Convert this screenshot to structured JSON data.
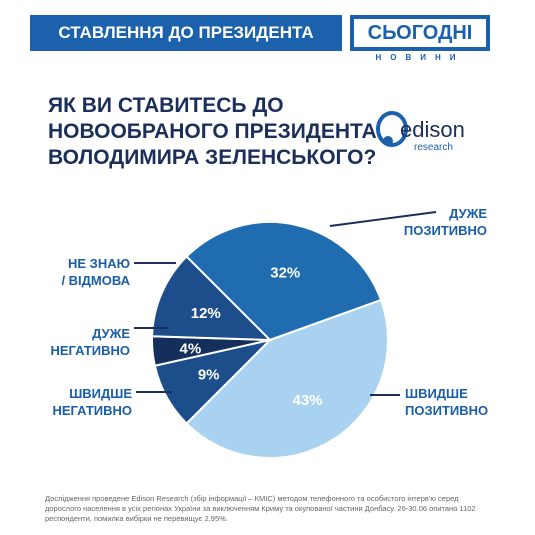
{
  "header": {
    "title": "СТАВЛЕННЯ ДО ПРЕЗИДЕНТА",
    "brand": "СЬОГОДНІ",
    "brand_sub": "НОВИНИ"
  },
  "logo": {
    "name": "edison",
    "sub": "research"
  },
  "chart_data": {
    "type": "pie",
    "title": [
      "ЯК ВИ СТАВИТЕСЬ ДО",
      "НОВООБРАНОГО ПРЕЗИДЕНТА",
      "ВОЛОДИМИРА ЗЕЛЕНСЬКОГО?"
    ],
    "categories": [
      "ДУЖЕ ПОЗИТИВНО",
      "ШВИДШЕ ПОЗИТИВНО",
      "ШВИДШЕ НЕГАТИВНО",
      "ДУЖЕ НЕГАТИВНО",
      "НЕ ЗНАЮ / ВІДМОВА"
    ],
    "values": [
      32,
      43,
      9,
      4,
      12
    ],
    "value_labels": [
      "32%",
      "43%",
      "9%",
      "4%",
      "12%"
    ],
    "colors": [
      "#1f6db0",
      "#a8d2ef",
      "#1b4e8b",
      "#142f5c",
      "#1d4d8a"
    ]
  },
  "footnote": "Дослідження проведене Edison Research (збір інформації – КМІС) методом телефонного та особистого інтерв'ю серед дорослого населення в усіх регіонах України за виключенням Криму та окупованої частини Донбасу. 26-30.06 опитано 1102 респонденти, помилка вибірки не перевищує 2,95%."
}
